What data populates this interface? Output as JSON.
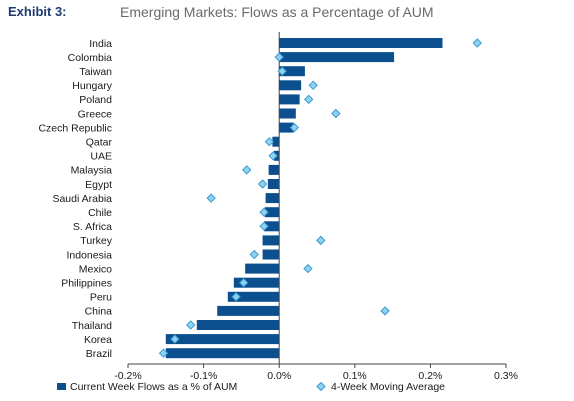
{
  "header": {
    "exhibit_label": "Exhibit 3:",
    "title": "Emerging Markets: Flows as a Percentage of AUM"
  },
  "colors": {
    "bar": "#0b4f8f",
    "marker_fill": "#8fd1f0",
    "marker_stroke": "#3b9bd1",
    "axis": "#444444",
    "title": "#6a6a6a",
    "exhibit": "#1f3b73"
  },
  "chart_data": {
    "type": "bar",
    "orientation": "horizontal",
    "categories": [
      "India",
      "Colombia",
      "Taiwan",
      "Hungary",
      "Poland",
      "Greece",
      "Czech Republic",
      "Qatar",
      "UAE",
      "Malaysia",
      "Egypt",
      "Saudi Arabia",
      "Chile",
      "S. Africa",
      "Turkey",
      "Indonesia",
      "Mexico",
      "Philippines",
      "Peru",
      "China",
      "Thailand",
      "Korea",
      "Brazil"
    ],
    "series": [
      {
        "name": "Current Week Flows as a % of AUM",
        "type": "bar",
        "values": [
          0.216,
          0.152,
          0.034,
          0.029,
          0.027,
          0.022,
          0.019,
          -0.009,
          -0.007,
          -0.014,
          -0.015,
          -0.018,
          -0.019,
          -0.02,
          -0.022,
          -0.022,
          -0.045,
          -0.06,
          -0.068,
          -0.082,
          -0.109,
          -0.15,
          -0.15
        ]
      },
      {
        "name": "4-Week Moving Average",
        "type": "scatter",
        "marker": "diamond",
        "values": [
          0.262,
          0.0,
          0.004,
          0.045,
          0.039,
          0.075,
          0.02,
          -0.013,
          -0.008,
          -0.043,
          -0.022,
          -0.09,
          -0.02,
          -0.02,
          0.055,
          -0.033,
          0.038,
          -0.047,
          -0.057,
          0.14,
          -0.117,
          -0.138,
          -0.153
        ]
      }
    ],
    "xlim": [
      -0.2,
      0.3
    ],
    "xticks": [
      -0.2,
      -0.1,
      0.0,
      0.1,
      0.2,
      0.3
    ],
    "xtick_labels": [
      "-0.2%",
      "-0.1%",
      "0.0%",
      "0.1%",
      "0.2%",
      "0.3%"
    ],
    "grid": false,
    "legend": "bottom"
  }
}
